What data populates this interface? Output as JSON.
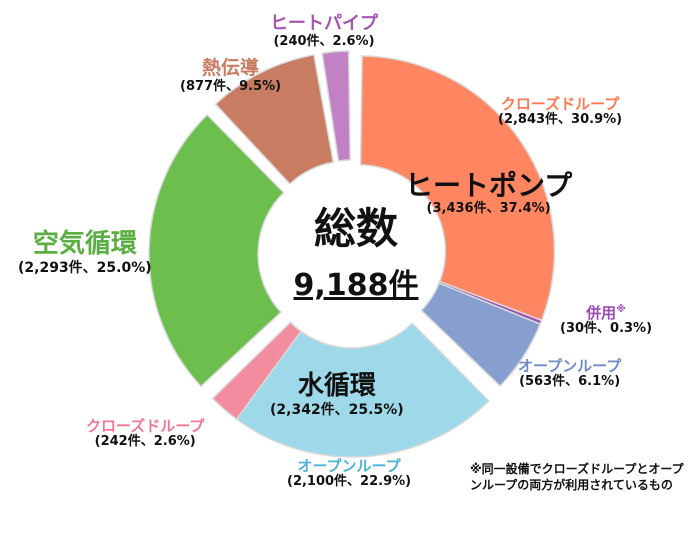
{
  "chart_data": {
    "type": "pie",
    "title": "総数",
    "total": "9,188件",
    "note": "※同一設備でクローズドループとオープンループの両方が利用されているもの",
    "groups": [
      {
        "name": "ヒートポンプ",
        "count": 3436,
        "value_text": "(3,436件、37.4%)",
        "color": "#000000",
        "subs": [
          {
            "name": "クローズドループ",
            "count": 2843,
            "value_text": "(2,843件、30.9%)",
            "color": "#FF8661"
          },
          {
            "name": "併用",
            "marker": "※",
            "count": 30,
            "value_text": "(30件、0.3%)",
            "color": "#9B4DB6"
          },
          {
            "name": "オープンループ",
            "count": 563,
            "value_text": "(563件、6.1%)",
            "color": "#869FCF"
          }
        ]
      },
      {
        "name": "水循環",
        "count": 2342,
        "value_text": "(2,342件、25.5%)",
        "color": "#000000",
        "subs": [
          {
            "name": "オープンループ",
            "count": 2100,
            "value_text": "(2,100件、22.9%)",
            "color": "#9ED9EA"
          },
          {
            "name": "クローズドループ",
            "count": 242,
            "value_text": "(242件、2.6%)",
            "color": "#F48CA0"
          }
        ]
      },
      {
        "name": "空気循環",
        "count": 2293,
        "value_text": "(2,293件、25.0%)",
        "color": "#6CBF4D",
        "subs": [
          {
            "name": "空気循環",
            "count": 2293,
            "value_text": "",
            "color": "#6CBF4D"
          }
        ]
      },
      {
        "name": "熱伝導",
        "count": 877,
        "value_text": "(877件、9.5%)",
        "color": "#C87D62",
        "subs": [
          {
            "name": "熱伝導",
            "count": 877,
            "value_text": "",
            "color": "#C87D62"
          }
        ]
      },
      {
        "name": "ヒートパイプ",
        "count": 240,
        "value_text": "(240件、2.6%)",
        "color": "#A656AE",
        "subs": [
          {
            "name": "ヒートパイプ",
            "count": 240,
            "value_text": "",
            "color": "#C181C4"
          }
        ]
      }
    ]
  }
}
